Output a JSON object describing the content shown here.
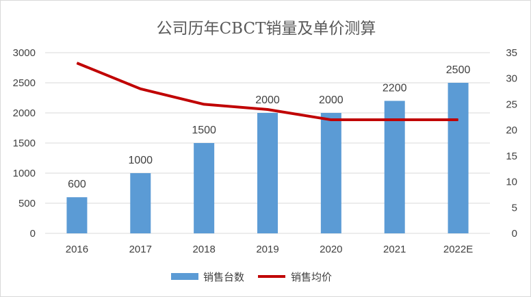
{
  "chart_data": {
    "type": "bar",
    "title": "公司历年CBCT销量及单价测算",
    "categories": [
      "2016",
      "2017",
      "2018",
      "2019",
      "2020",
      "2021",
      "2022E"
    ],
    "series": [
      {
        "name": "销售台数",
        "type": "bar",
        "axis": "left",
        "color": "#5b9bd5",
        "values": [
          600,
          1000,
          1500,
          2000,
          2000,
          2200,
          2500
        ],
        "data_labels": [
          "600",
          "1000",
          "1500",
          "2000",
          "2000",
          "2200",
          "2500"
        ]
      },
      {
        "name": "销售均价",
        "type": "line",
        "axis": "right",
        "color": "#c00000",
        "values": [
          33,
          28,
          25,
          24,
          22,
          22,
          22
        ]
      }
    ],
    "y_left": {
      "ylim": [
        0,
        3000
      ],
      "ticks": [
        "0",
        "500",
        "1000",
        "1500",
        "2000",
        "2500",
        "3000"
      ]
    },
    "y_right": {
      "ylim": [
        0,
        35
      ],
      "ticks": [
        "0",
        "5",
        "10",
        "15",
        "20",
        "25",
        "30",
        "35"
      ]
    },
    "grid": true,
    "legend_position": "bottom",
    "gridline_color": "#d9d9d9"
  }
}
